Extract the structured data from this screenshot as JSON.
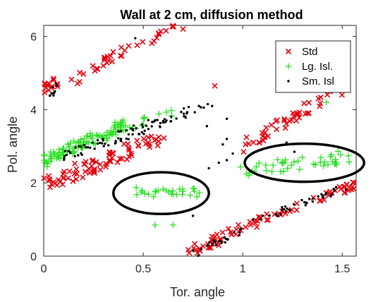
{
  "chart_data": {
    "type": "scatter",
    "title": "Wall at 2 cm, diffusion method",
    "xlabel": "Tor. angle",
    "ylabel": "Pol. angle",
    "xlim": [
      0,
      1.57
    ],
    "ylim": [
      0,
      6.3
    ],
    "xticks": [
      0,
      0.5,
      1,
      1.5
    ],
    "xtick_labels": [
      "0",
      "0.5",
      "1",
      "1.5"
    ],
    "yticks": [
      0,
      2,
      4,
      6
    ],
    "ytick_labels": [
      "0",
      "2",
      "4",
      "6"
    ],
    "grid": false,
    "legend_position": "top-right",
    "colors": {
      "std": "#e6000d",
      "lg": "#27e01f",
      "sm": "#000000"
    },
    "series": [
      {
        "name": "Std",
        "marker": "x",
        "segments": [
          {
            "x0": 0.0,
            "x1": 0.06,
            "y0": 4.55,
            "y1": 4.75,
            "n": 16,
            "jitter": 0.12
          },
          {
            "x0": 0.14,
            "x1": 0.45,
            "y0": 4.8,
            "y1": 5.75,
            "n": 24,
            "jitter": 0.18
          },
          {
            "x0": 0.48,
            "x1": 0.68,
            "y0": 5.8,
            "y1": 6.25,
            "n": 12,
            "jitter": 0.12
          },
          {
            "x0": 0.0,
            "x1": 0.6,
            "y0": 1.95,
            "y1": 3.25,
            "n": 80,
            "jitter": 0.22
          },
          {
            "x0": 0.72,
            "x1": 1.08,
            "y0": 0.08,
            "y1": 0.95,
            "n": 40,
            "jitter": 0.15
          },
          {
            "x0": 1.08,
            "x1": 1.57,
            "y0": 0.95,
            "y1": 1.95,
            "n": 40,
            "jitter": 0.12
          },
          {
            "x0": 1.0,
            "x1": 1.55,
            "y0": 3.0,
            "y1": 4.75,
            "n": 50,
            "jitter": 0.18
          }
        ],
        "extra_points": [
          [
            0.86,
            4.65
          ],
          [
            0.7,
            6.2
          ]
        ]
      },
      {
        "name": "Lg. Isl.",
        "marker": "+",
        "segments": [
          {
            "x0": 0.0,
            "x1": 0.42,
            "y0": 2.6,
            "y1": 3.6,
            "n": 110,
            "jitter": 0.18
          },
          {
            "x0": 0.42,
            "x1": 0.66,
            "y0": 3.55,
            "y1": 3.95,
            "n": 10,
            "jitter": 0.12
          },
          {
            "x0": 0.43,
            "x1": 0.8,
            "y0": 1.75,
            "y1": 1.75,
            "n": 28,
            "jitter": 0.14
          },
          {
            "x0": 1.0,
            "x1": 1.55,
            "y0": 2.3,
            "y1": 2.75,
            "n": 45,
            "jitter": 0.18
          }
        ],
        "extra_points": [
          [
            1.42,
            4.2
          ],
          [
            0.56,
            0.85
          ],
          [
            0.65,
            0.85
          ]
        ]
      },
      {
        "name": "Sm. Isl",
        "marker": ".",
        "segments": [
          {
            "x0": 0.03,
            "x1": 0.07,
            "y0": 4.3,
            "y1": 4.75,
            "n": 10,
            "jitter": 0.08
          },
          {
            "x0": 0.1,
            "x1": 0.73,
            "y0": 2.7,
            "y1": 3.95,
            "n": 85,
            "jitter": 0.15
          },
          {
            "x0": 0.72,
            "x1": 0.88,
            "y0": 3.9,
            "y1": 4.2,
            "n": 6,
            "jitter": 0.06
          },
          {
            "x0": 0.75,
            "x1": 1.05,
            "y0": 0.05,
            "y1": 0.85,
            "n": 25,
            "jitter": 0.1
          },
          {
            "x0": 1.05,
            "x1": 1.55,
            "y0": 0.95,
            "y1": 1.95,
            "n": 35,
            "jitter": 0.1
          }
        ],
        "extra_points": [
          [
            0.46,
            5.95
          ],
          [
            0.83,
            2.4
          ],
          [
            0.88,
            2.55
          ],
          [
            0.92,
            2.62
          ],
          [
            0.95,
            2.8
          ],
          [
            0.9,
            3.05
          ],
          [
            0.92,
            3.2
          ],
          [
            0.82,
            3.55
          ],
          [
            0.92,
            3.75
          ],
          [
            0.78,
            4.1
          ],
          [
            0.75,
            1.1
          ],
          [
            1.22,
            3.1
          ],
          [
            1.26,
            2.85
          ]
        ]
      }
    ],
    "annotations": [
      {
        "type": "ellipse",
        "label": "",
        "cx": 0.59,
        "cy": 1.72,
        "rx": 0.24,
        "ry": 0.57
      },
      {
        "type": "ellipse",
        "label": "",
        "cx": 1.31,
        "cy": 2.55,
        "rx": 0.3,
        "ry": 0.52
      }
    ]
  }
}
